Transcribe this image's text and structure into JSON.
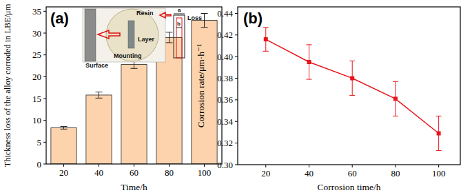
{
  "chart_data": [
    {
      "type": "bar",
      "title": "(a)",
      "x_label": "Time/h",
      "y_label": "Thickness loss of the alloy corroded in LBE/μm",
      "categories": [
        "20",
        "40",
        "60",
        "80",
        "100"
      ],
      "values": [
        8.3,
        15.8,
        22.8,
        29.0,
        32.9
      ],
      "errors": [
        0.3,
        0.7,
        0.9,
        1.2,
        1.6
      ],
      "color": "#fcd3ac",
      "ylim": [
        0,
        36
      ],
      "yticks": [
        0,
        5,
        10,
        15,
        20,
        25,
        30,
        35
      ],
      "grid": false,
      "annotations": [
        "Surface",
        "Resin",
        "Layer",
        "Mounting",
        "Loss",
        "a",
        "b"
      ]
    },
    {
      "type": "line",
      "title": "(b)",
      "x_label": "Corrosion time/h",
      "y_label": "Corrosion rate/μm·h⁻¹",
      "x": [
        20,
        40,
        60,
        80,
        100
      ],
      "values": [
        0.416,
        0.395,
        0.38,
        0.361,
        0.329
      ],
      "errors": [
        0.011,
        0.016,
        0.016,
        0.016,
        0.016
      ],
      "color": "#e8141c",
      "marker": "square",
      "line_style": "solid",
      "xlim": [
        7,
        110
      ],
      "xticks": [
        20,
        40,
        60,
        80,
        100
      ],
      "ylim": [
        0.3,
        0.446
      ],
      "yticks": [
        {
          "value": 0.3,
          "label": "0.30"
        },
        0.32,
        0.34,
        0.36,
        0.38,
        {
          "value": 0.4,
          "label": "0.40"
        },
        0.42,
        0.44
      ],
      "grid": false
    }
  ]
}
